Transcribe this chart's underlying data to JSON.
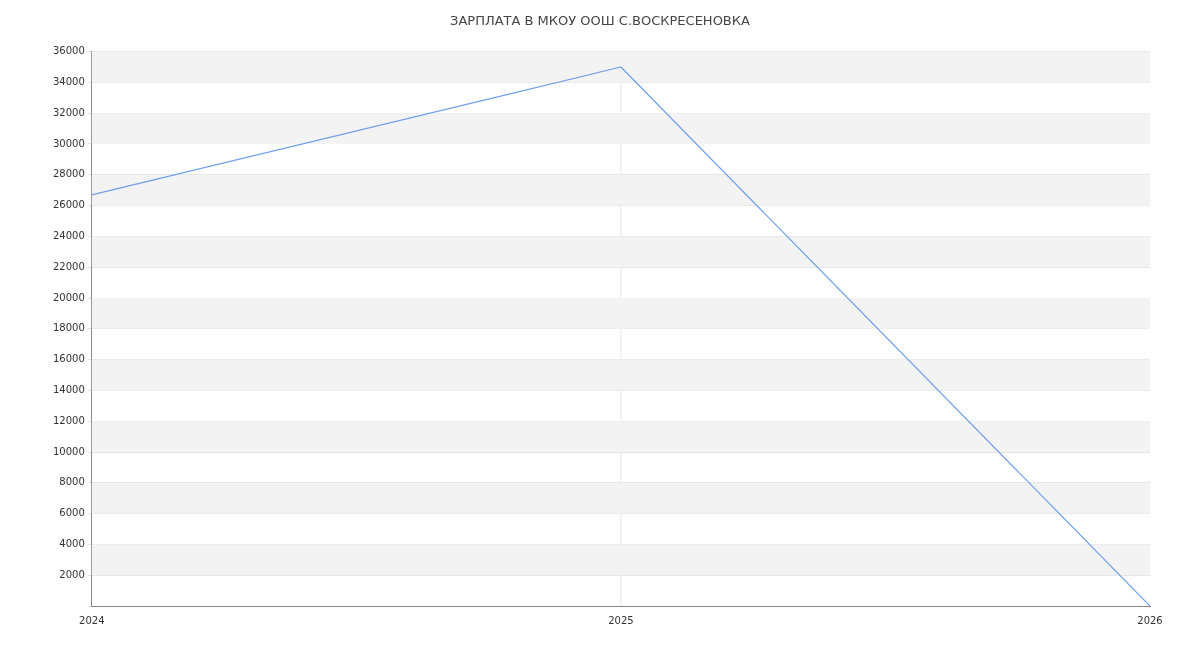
{
  "chart_data": {
    "type": "line",
    "title": "ЗАРПЛАТА В МКОУ ООШ С.ВОСКРЕСЕНОВКА",
    "x": [
      2024,
      2025,
      2026
    ],
    "xlim": [
      2024,
      2026
    ],
    "xticks": [
      2024,
      2025,
      2026
    ],
    "series": [
      {
        "color": "#6d9eeb",
        "values": [
          26700,
          35000,
          0
        ]
      }
    ],
    "ylim": [
      0,
      36000
    ],
    "yticks": [
      {
        "value": 0,
        "label": null
      },
      2000,
      4000,
      6000,
      8000,
      10000,
      12000,
      14000,
      16000,
      18000,
      20000,
      22000,
      24000,
      26000,
      28000,
      30000,
      32000,
      34000,
      36000
    ],
    "ref_lines": [
      {
        "axis": "x",
        "value": 2025,
        "color": "#e6e6e6",
        "line_style": "solid"
      }
    ],
    "grid": "y",
    "legend": false,
    "marker": "none",
    "line_style": "solid"
  }
}
